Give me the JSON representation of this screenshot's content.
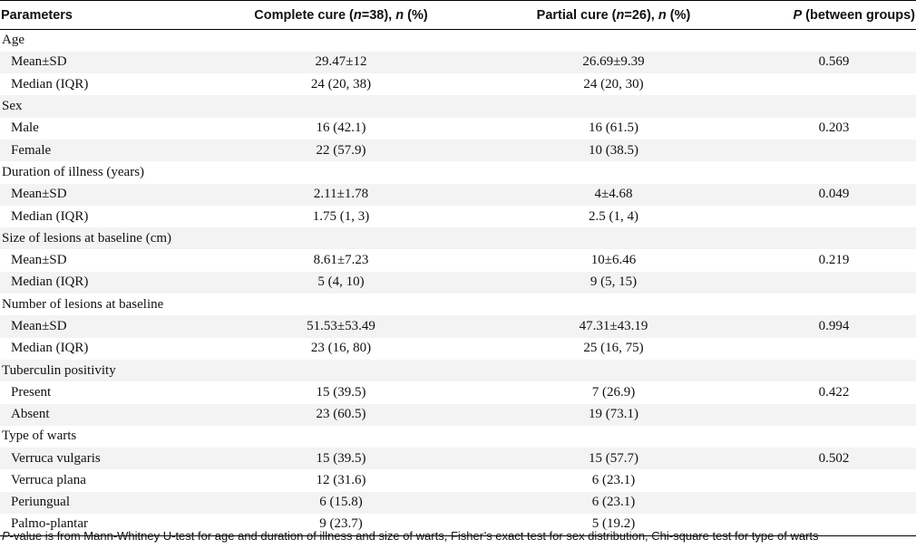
{
  "header": {
    "col1": "Parameters",
    "col2_pre": "Complete cure (",
    "col2_n": "n",
    "col2_mid": "=38), ",
    "col2_n2": "n",
    "col2_post": " (%)",
    "col3_pre": "Partial cure (",
    "col3_n": "n",
    "col3_mid": "=26), ",
    "col3_n2": "n",
    "col3_post": " (%)",
    "col4_p": "P",
    "col4_post": " (between groups)"
  },
  "rows": [
    {
      "label": "Age",
      "complete": "",
      "partial": "",
      "p": ""
    },
    {
      "label": "Mean±SD",
      "complete": "29.47±12",
      "partial": "26.69±9.39",
      "p": "0.569"
    },
    {
      "label": "Median (IQR)",
      "complete": "24 (20, 38)",
      "partial": "24 (20, 30)",
      "p": ""
    },
    {
      "label": "Sex",
      "complete": "",
      "partial": "",
      "p": ""
    },
    {
      "label": "Male",
      "complete": "16 (42.1)",
      "partial": "16 (61.5)",
      "p": "0.203"
    },
    {
      "label": "Female",
      "complete": "22 (57.9)",
      "partial": "10 (38.5)",
      "p": ""
    },
    {
      "label": "Duration of illness (years)",
      "complete": "",
      "partial": "",
      "p": ""
    },
    {
      "label": "Mean±SD",
      "complete": "2.11±1.78",
      "partial": "4±4.68",
      "p": "0.049"
    },
    {
      "label": "Median (IQR)",
      "complete": "1.75 (1, 3)",
      "partial": "2.5 (1, 4)",
      "p": ""
    },
    {
      "label": "Size of lesions at baseline (cm)",
      "complete": "",
      "partial": "",
      "p": ""
    },
    {
      "label": "Mean±SD",
      "complete": "8.61±7.23",
      "partial": "10±6.46",
      "p": "0.219"
    },
    {
      "label": "Median (IQR)",
      "complete": "5 (4, 10)",
      "partial": "9 (5, 15)",
      "p": ""
    },
    {
      "label": "Number of lesions at baseline",
      "complete": "",
      "partial": "",
      "p": ""
    },
    {
      "label": "Mean±SD",
      "complete": "51.53±53.49",
      "partial": "47.31±43.19",
      "p": "0.994"
    },
    {
      "label": "Median (IQR)",
      "complete": "23 (16, 80)",
      "partial": "25 (16, 75)",
      "p": ""
    },
    {
      "label": "Tuberculin positivity",
      "complete": "",
      "partial": "",
      "p": ""
    },
    {
      "label": "Present",
      "complete": "15 (39.5)",
      "partial": "7 (26.9)",
      "p": "0.422"
    },
    {
      "label": "Absent",
      "complete": "23 (60.5)",
      "partial": "19 (73.1)",
      "p": ""
    },
    {
      "label": "Type of warts",
      "complete": "",
      "partial": "",
      "p": ""
    },
    {
      "label": "Verruca vulgaris",
      "complete": "15 (39.5)",
      "partial": "15 (57.7)",
      "p": "0.502"
    },
    {
      "label": "Verruca plana",
      "complete": "12 (31.6)",
      "partial": "6 (23.1)",
      "p": ""
    },
    {
      "label": "Periungual",
      "complete": "6 (15.8)",
      "partial": "6 (23.1)",
      "p": ""
    },
    {
      "label": "Palmo-plantar",
      "complete": "9 (23.7)",
      "partial": "5 (19.2)",
      "p": ""
    }
  ],
  "footnote": {
    "p": "P",
    "text": "-value is from Mann-Whitney U-test for age and duration of illness and size of warts, Fisher’s exact test for sex distribution, Chi-square test for type of warts"
  }
}
